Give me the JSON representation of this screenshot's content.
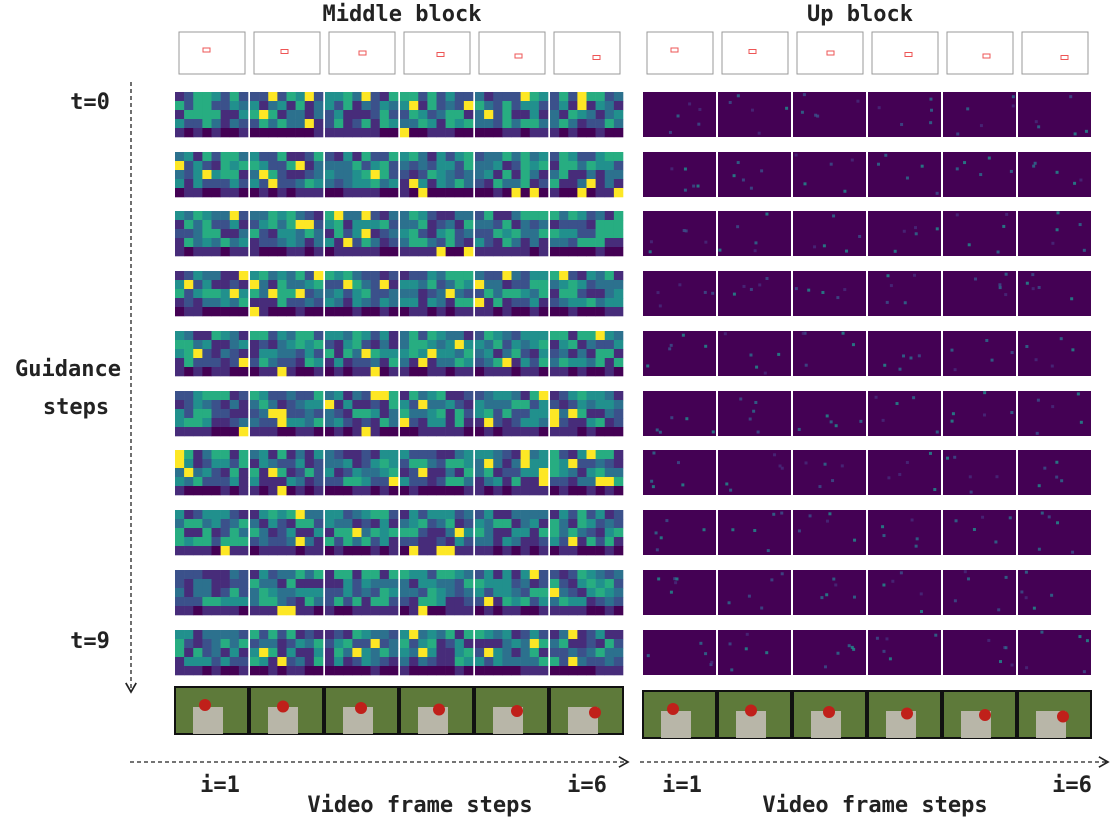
{
  "figure": {
    "panels": [
      {
        "title": "Middle block",
        "x_start": "i=1",
        "x_end": "i=6",
        "x_label": "Video frame steps"
      },
      {
        "title": "Up block",
        "x_start": "i=1",
        "x_end": "i=6",
        "x_label": "Video frame steps"
      }
    ],
    "y_start": "t=0",
    "y_label_lines": [
      "Guidance",
      "steps"
    ],
    "y_end": "t=9"
  }
}
